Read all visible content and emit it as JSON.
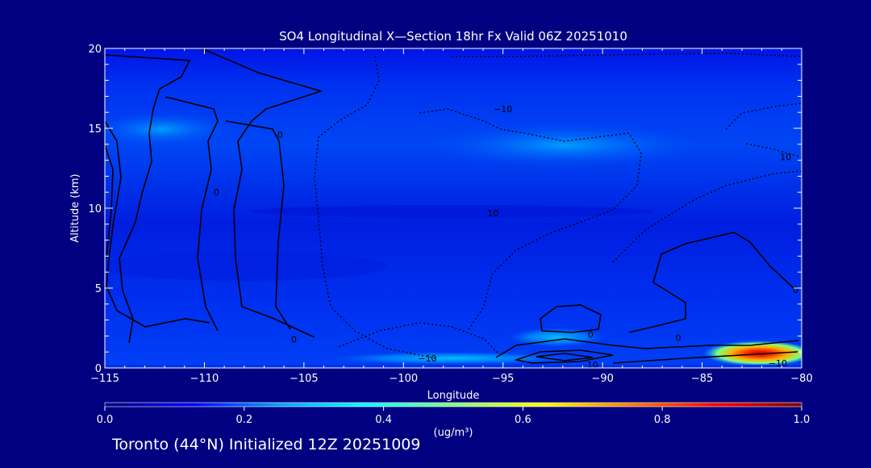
{
  "chart_data": {
    "type": "heatmap",
    "title": "SO4 Longitudinal X—Section 18hr  Fx Valid 06Z 20251010",
    "xlabel": "Longitude",
    "ylabel": "Altitude (km)",
    "xlim": [
      -115,
      -80
    ],
    "ylim": [
      0,
      20
    ],
    "x_ticks": [
      {
        "value": -115,
        "label": "−115"
      },
      {
        "value": -110,
        "label": "−110"
      },
      {
        "value": -105,
        "label": "−105"
      },
      {
        "value": -100,
        "label": "−100"
      },
      {
        "value": -95,
        "label": "−95"
      },
      {
        "value": -90,
        "label": "−90"
      },
      {
        "value": -85,
        "label": "−85"
      },
      {
        "value": -80,
        "label": "−80"
      }
    ],
    "y_ticks": [
      {
        "value": 0,
        "label": "0"
      },
      {
        "value": 5,
        "label": "5"
      },
      {
        "value": 10,
        "label": "10"
      },
      {
        "value": 15,
        "label": "15"
      },
      {
        "value": 20,
        "label": "20"
      }
    ],
    "colorbar": {
      "min": 0.0,
      "max": 1.0,
      "ticks": [
        "0.0",
        "0.2",
        "0.4",
        "0.6",
        "0.8",
        "1.0"
      ],
      "unit_label": "(ug/m³)",
      "colors": [
        "#000080",
        "#0000ff",
        "#00a0ff",
        "#00ffff",
        "#80ff80",
        "#ffff00",
        "#ff8000",
        "#ff0000",
        "#800000"
      ]
    },
    "concentration_regions": [
      {
        "lon_range": [
          -115,
          -80
        ],
        "alt_range": [
          0,
          20
        ],
        "value": 0.15
      },
      {
        "lon_range": [
          -96,
          -91
        ],
        "alt_range": [
          1.5,
          2.5
        ],
        "value": 0.35
      },
      {
        "lon_range": [
          -86,
          -80
        ],
        "alt_range": [
          0.3,
          1.8
        ],
        "value": 0.6
      },
      {
        "lon_range": [
          -84,
          -82.5
        ],
        "alt_range": [
          0.5,
          1.5
        ],
        "value": 0.85
      }
    ],
    "contour_labels": [
      {
        "lon": -106.2,
        "alt": 14.6,
        "text": "0"
      },
      {
        "lon": -109.4,
        "alt": 11.0,
        "text": "0"
      },
      {
        "lon": -105.5,
        "alt": 1.8,
        "text": "0"
      },
      {
        "lon": -90.6,
        "alt": 2.1,
        "text": "0"
      },
      {
        "lon": -80.3,
        "alt": 4.9,
        "text": "0"
      },
      {
        "lon": -86.2,
        "alt": 1.9,
        "text": "0"
      },
      {
        "lon": -90.5,
        "alt": 0.2,
        "text": "10"
      },
      {
        "lon": -98.8,
        "alt": 0.6,
        "text": "−10"
      },
      {
        "lon": -95.0,
        "alt": 16.2,
        "text": "−10"
      },
      {
        "lon": -95.5,
        "alt": 9.7,
        "text": "10"
      },
      {
        "lon": -80.8,
        "alt": 13.2,
        "text": "10"
      },
      {
        "lon": -81.2,
        "alt": 0.3,
        "text": "−10"
      }
    ]
  },
  "footer": {
    "text": "Toronto (44°N) Initialized 12Z 20251009"
  }
}
